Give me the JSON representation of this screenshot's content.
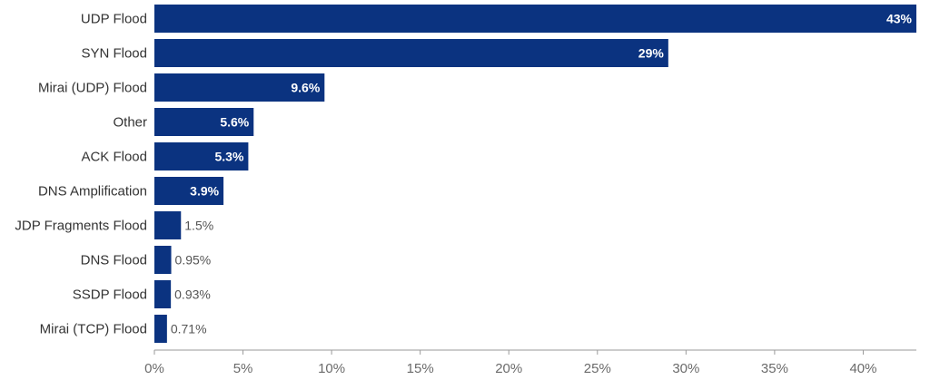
{
  "chart_data": {
    "type": "bar",
    "orientation": "horizontal",
    "categories": [
      "UDP Flood",
      "SYN Flood",
      "Mirai (UDP) Flood",
      "Other",
      "ACK Flood",
      "DNS Amplification",
      "JDP Fragments Flood",
      "DNS Flood",
      "SSDP Flood",
      "Mirai (TCP) Flood"
    ],
    "values": [
      43,
      29,
      9.6,
      5.6,
      5.3,
      3.9,
      1.5,
      0.95,
      0.93,
      0.71
    ],
    "value_labels": [
      "43%",
      "29%",
      "9.6%",
      "5.6%",
      "5.3%",
      "3.9%",
      "1.5%",
      "0.95%",
      "0.93%",
      "0.71%"
    ],
    "xlim": [
      0,
      43
    ],
    "xticks": [
      0,
      5,
      10,
      15,
      20,
      25,
      30,
      35,
      40
    ],
    "xtick_labels": [
      "0%",
      "5%",
      "10%",
      "15%",
      "20%",
      "25%",
      "30%",
      "35%",
      "40%"
    ],
    "title": "",
    "xlabel": "",
    "ylabel": "",
    "grid": false,
    "colors": {
      "bar": "#0b3380",
      "axis": "#9a9a9a"
    }
  }
}
